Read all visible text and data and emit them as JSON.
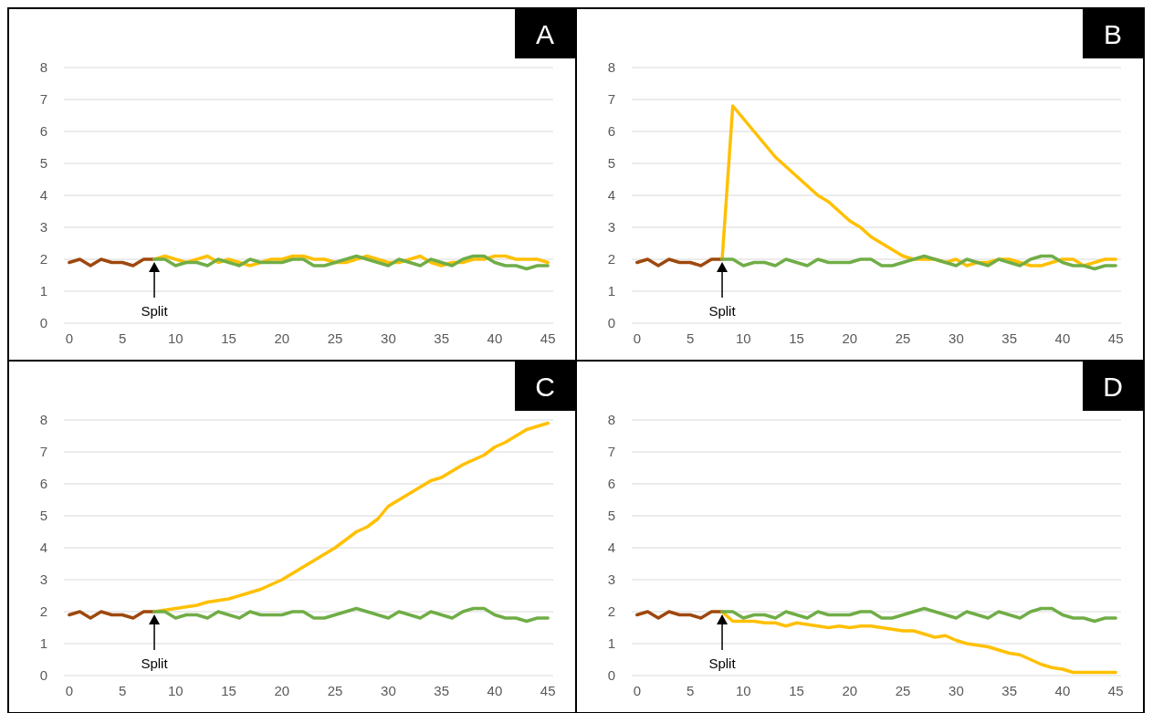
{
  "chart_data": [
    {
      "type": "line",
      "title": "A",
      "xlim": [
        -0.5,
        45.5
      ],
      "xticks": [
        0,
        5,
        10,
        15,
        20,
        25,
        30,
        35,
        40,
        45
      ],
      "ylim": [
        0,
        8
      ],
      "yticks": [
        0,
        1,
        2,
        3,
        4,
        5,
        6,
        7,
        8
      ],
      "grid": "y",
      "annotations": [
        "Split"
      ],
      "series": [
        {
          "color": "#9e480e",
          "x": [
            0,
            1,
            2,
            3,
            4,
            5,
            6,
            7,
            8
          ],
          "values": [
            1.9,
            2.0,
            1.8,
            2.0,
            1.9,
            1.9,
            1.8,
            2.0,
            2.0
          ]
        },
        {
          "color": "#ffc000",
          "x": [
            8,
            9,
            10,
            11,
            12,
            13,
            14,
            15,
            16,
            17,
            18,
            19,
            20,
            21,
            22,
            23,
            24,
            25,
            26,
            27,
            28,
            29,
            30,
            31,
            32,
            33,
            34,
            35,
            36,
            37,
            38,
            39,
            40,
            41,
            42,
            43,
            44,
            45
          ],
          "values": [
            2.0,
            2.1,
            2.0,
            1.9,
            2.0,
            2.1,
            1.9,
            2.0,
            1.9,
            1.8,
            1.9,
            2.0,
            2.0,
            2.1,
            2.1,
            2.0,
            2.0,
            1.9,
            1.9,
            2.0,
            2.1,
            2.0,
            1.9,
            1.9,
            2.0,
            2.1,
            1.9,
            1.8,
            1.9,
            1.9,
            2.0,
            2.0,
            2.1,
            2.1,
            2.0,
            2.0,
            2.0,
            1.9
          ]
        },
        {
          "color": "#70ad47",
          "x": [
            8,
            9,
            10,
            11,
            12,
            13,
            14,
            15,
            16,
            17,
            18,
            19,
            20,
            21,
            22,
            23,
            24,
            25,
            26,
            27,
            28,
            29,
            30,
            31,
            32,
            33,
            34,
            35,
            36,
            37,
            38,
            39,
            40,
            41,
            42,
            43,
            44,
            45
          ],
          "values": [
            2.0,
            2.0,
            1.8,
            1.9,
            1.9,
            1.8,
            2.0,
            1.9,
            1.8,
            2.0,
            1.9,
            1.9,
            1.9,
            2.0,
            2.0,
            1.8,
            1.8,
            1.9,
            2.0,
            2.1,
            2.0,
            1.9,
            1.8,
            2.0,
            1.9,
            1.8,
            2.0,
            1.9,
            1.8,
            2.0,
            2.1,
            2.1,
            1.9,
            1.8,
            1.8,
            1.7,
            1.8,
            1.8
          ]
        }
      ]
    },
    {
      "type": "line",
      "title": "B",
      "xlim": [
        -0.5,
        45.5
      ],
      "xticks": [
        0,
        5,
        10,
        15,
        20,
        25,
        30,
        35,
        40,
        45
      ],
      "ylim": [
        0,
        8
      ],
      "yticks": [
        0,
        1,
        2,
        3,
        4,
        5,
        6,
        7,
        8
      ],
      "grid": "y",
      "annotations": [
        "Split"
      ],
      "series": [
        {
          "color": "#9e480e",
          "x": [
            0,
            1,
            2,
            3,
            4,
            5,
            6,
            7,
            8
          ],
          "values": [
            1.9,
            2.0,
            1.8,
            2.0,
            1.9,
            1.9,
            1.8,
            2.0,
            2.0
          ]
        },
        {
          "color": "#ffc000",
          "x": [
            8,
            9,
            10,
            11,
            12,
            13,
            14,
            15,
            16,
            17,
            18,
            19,
            20,
            21,
            22,
            23,
            24,
            25,
            26,
            27,
            28,
            29,
            30,
            31,
            32,
            33,
            34,
            35,
            36,
            37,
            38,
            39,
            40,
            41,
            42,
            43,
            44,
            45
          ],
          "values": [
            2.0,
            6.8,
            6.4,
            6.0,
            5.6,
            5.2,
            4.9,
            4.6,
            4.3,
            4.0,
            3.8,
            3.5,
            3.2,
            3.0,
            2.7,
            2.5,
            2.3,
            2.1,
            2.0,
            2.0,
            2.0,
            1.9,
            2.0,
            1.8,
            1.9,
            1.9,
            2.0,
            2.0,
            1.9,
            1.8,
            1.8,
            1.9,
            2.0,
            2.0,
            1.8,
            1.9,
            2.0,
            2.0
          ]
        },
        {
          "color": "#70ad47",
          "x": [
            8,
            9,
            10,
            11,
            12,
            13,
            14,
            15,
            16,
            17,
            18,
            19,
            20,
            21,
            22,
            23,
            24,
            25,
            26,
            27,
            28,
            29,
            30,
            31,
            32,
            33,
            34,
            35,
            36,
            37,
            38,
            39,
            40,
            41,
            42,
            43,
            44,
            45
          ],
          "values": [
            2.0,
            2.0,
            1.8,
            1.9,
            1.9,
            1.8,
            2.0,
            1.9,
            1.8,
            2.0,
            1.9,
            1.9,
            1.9,
            2.0,
            2.0,
            1.8,
            1.8,
            1.9,
            2.0,
            2.1,
            2.0,
            1.9,
            1.8,
            2.0,
            1.9,
            1.8,
            2.0,
            1.9,
            1.8,
            2.0,
            2.1,
            2.1,
            1.9,
            1.8,
            1.8,
            1.7,
            1.8,
            1.8
          ]
        }
      ]
    },
    {
      "type": "line",
      "title": "C",
      "xlim": [
        -0.5,
        45.5
      ],
      "xticks": [
        0,
        5,
        10,
        15,
        20,
        25,
        30,
        35,
        40,
        45
      ],
      "ylim": [
        0,
        8
      ],
      "yticks": [
        0,
        1,
        2,
        3,
        4,
        5,
        6,
        7,
        8
      ],
      "grid": "y",
      "annotations": [
        "Split"
      ],
      "series": [
        {
          "color": "#9e480e",
          "x": [
            0,
            1,
            2,
            3,
            4,
            5,
            6,
            7,
            8
          ],
          "values": [
            1.9,
            2.0,
            1.8,
            2.0,
            1.9,
            1.9,
            1.8,
            2.0,
            2.0
          ]
        },
        {
          "color": "#ffc000",
          "x": [
            8,
            9,
            10,
            11,
            12,
            13,
            14,
            15,
            16,
            17,
            18,
            19,
            20,
            21,
            22,
            23,
            24,
            25,
            26,
            27,
            28,
            29,
            30,
            31,
            32,
            33,
            34,
            35,
            36,
            37,
            38,
            39,
            40,
            41,
            42,
            43,
            44,
            45
          ],
          "values": [
            2.0,
            2.05,
            2.1,
            2.15,
            2.2,
            2.3,
            2.35,
            2.4,
            2.5,
            2.6,
            2.7,
            2.85,
            3.0,
            3.2,
            3.4,
            3.6,
            3.8,
            4.0,
            4.25,
            4.5,
            4.65,
            4.9,
            5.3,
            5.5,
            5.7,
            5.9,
            6.1,
            6.2,
            6.4,
            6.6,
            6.75,
            6.9,
            7.15,
            7.3,
            7.5,
            7.7,
            7.8,
            7.9
          ]
        },
        {
          "color": "#70ad47",
          "x": [
            8,
            9,
            10,
            11,
            12,
            13,
            14,
            15,
            16,
            17,
            18,
            19,
            20,
            21,
            22,
            23,
            24,
            25,
            26,
            27,
            28,
            29,
            30,
            31,
            32,
            33,
            34,
            35,
            36,
            37,
            38,
            39,
            40,
            41,
            42,
            43,
            44,
            45
          ],
          "values": [
            2.0,
            2.0,
            1.8,
            1.9,
            1.9,
            1.8,
            2.0,
            1.9,
            1.8,
            2.0,
            1.9,
            1.9,
            1.9,
            2.0,
            2.0,
            1.8,
            1.8,
            1.9,
            2.0,
            2.1,
            2.0,
            1.9,
            1.8,
            2.0,
            1.9,
            1.8,
            2.0,
            1.9,
            1.8,
            2.0,
            2.1,
            2.1,
            1.9,
            1.8,
            1.8,
            1.7,
            1.8,
            1.8
          ]
        }
      ]
    },
    {
      "type": "line",
      "title": "D",
      "xlim": [
        -0.5,
        45.5
      ],
      "xticks": [
        0,
        5,
        10,
        15,
        20,
        25,
        30,
        35,
        40,
        45
      ],
      "ylim": [
        0,
        8
      ],
      "yticks": [
        0,
        1,
        2,
        3,
        4,
        5,
        6,
        7,
        8
      ],
      "grid": "y",
      "annotations": [
        "Split"
      ],
      "series": [
        {
          "color": "#9e480e",
          "x": [
            0,
            1,
            2,
            3,
            4,
            5,
            6,
            7,
            8
          ],
          "values": [
            1.9,
            2.0,
            1.8,
            2.0,
            1.9,
            1.9,
            1.8,
            2.0,
            2.0
          ]
        },
        {
          "color": "#ffc000",
          "x": [
            8,
            9,
            10,
            11,
            12,
            13,
            14,
            15,
            16,
            17,
            18,
            19,
            20,
            21,
            22,
            23,
            24,
            25,
            26,
            27,
            28,
            29,
            30,
            31,
            32,
            33,
            34,
            35,
            36,
            37,
            38,
            39,
            40,
            41,
            42,
            43,
            44,
            45
          ],
          "values": [
            2.0,
            1.7,
            1.7,
            1.7,
            1.65,
            1.65,
            1.55,
            1.65,
            1.6,
            1.55,
            1.5,
            1.55,
            1.5,
            1.55,
            1.55,
            1.5,
            1.45,
            1.4,
            1.4,
            1.3,
            1.2,
            1.25,
            1.1,
            1.0,
            0.95,
            0.9,
            0.8,
            0.7,
            0.65,
            0.5,
            0.35,
            0.25,
            0.2,
            0.1,
            0.1,
            0.1,
            0.1,
            0.1
          ]
        },
        {
          "color": "#70ad47",
          "x": [
            8,
            9,
            10,
            11,
            12,
            13,
            14,
            15,
            16,
            17,
            18,
            19,
            20,
            21,
            22,
            23,
            24,
            25,
            26,
            27,
            28,
            29,
            30,
            31,
            32,
            33,
            34,
            35,
            36,
            37,
            38,
            39,
            40,
            41,
            42,
            43,
            44,
            45
          ],
          "values": [
            2.0,
            2.0,
            1.8,
            1.9,
            1.9,
            1.8,
            2.0,
            1.9,
            1.8,
            2.0,
            1.9,
            1.9,
            1.9,
            2.0,
            2.0,
            1.8,
            1.8,
            1.9,
            2.0,
            2.1,
            2.0,
            1.9,
            1.8,
            2.0,
            1.9,
            1.8,
            2.0,
            1.9,
            1.8,
            2.0,
            2.1,
            2.1,
            1.9,
            1.8,
            1.8,
            1.7,
            1.8,
            1.8
          ]
        }
      ]
    }
  ]
}
